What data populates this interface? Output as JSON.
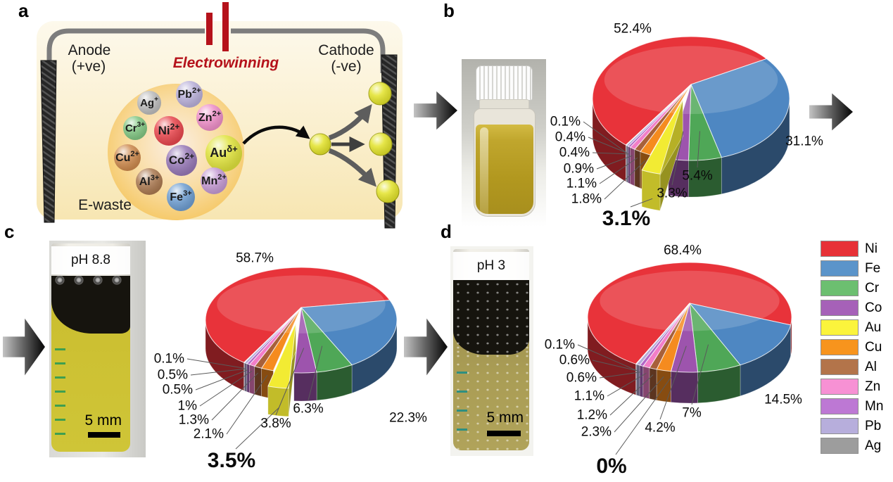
{
  "panels": {
    "a": {
      "letter": "a",
      "anode_label": "Anode",
      "anode_polarity": "(+ve)",
      "cathode_label": "Cathode",
      "cathode_polarity": "(-ve)",
      "process_title": "Electrowinning",
      "process_title_color": "#b5121b",
      "source_label": "E-waste",
      "ions": [
        {
          "symbol": "Ag",
          "charge": "+",
          "color": "#bcbcbc"
        },
        {
          "symbol": "Pb",
          "charge": "2+",
          "color": "#b9b0d9"
        },
        {
          "symbol": "Zn",
          "charge": "2+",
          "color": "#ee8fc8"
        },
        {
          "symbol": "Cr",
          "charge": "3+",
          "color": "#82c683"
        },
        {
          "symbol": "Ni",
          "charge": "2+",
          "color": "#e8474e"
        },
        {
          "symbol": "Cu",
          "charge": "2+",
          "color": "#cd8a4e"
        },
        {
          "symbol": "Co",
          "charge": "2+",
          "color": "#9779b7"
        },
        {
          "symbol": "Au",
          "charge": "δ+",
          "color": "#e0e33e"
        },
        {
          "symbol": "Al",
          "charge": "3+",
          "color": "#ab7a52"
        },
        {
          "symbol": "Mn",
          "charge": "2+",
          "color": "#c49ad3"
        },
        {
          "symbol": "Fe",
          "charge": "3+",
          "color": "#6f9ed1"
        }
      ]
    },
    "b": {
      "letter": "b"
    },
    "c": {
      "letter": "c",
      "photo_ph_label": "pH 8.8",
      "photo_scale_label": "5 mm"
    },
    "d": {
      "letter": "d",
      "photo_ph_label": "pH 3",
      "photo_scale_label": "5 mm"
    }
  },
  "legend": {
    "position": "right",
    "items": [
      {
        "label": "Ni",
        "color": "#e73137"
      },
      {
        "label": "Fe",
        "color": "#5b94ca"
      },
      {
        "label": "Cr",
        "color": "#6cbf70"
      },
      {
        "label": "Co",
        "color": "#a661b8"
      },
      {
        "label": "Au",
        "color": "#fbf43c"
      },
      {
        "label": "Cu",
        "color": "#f7941d"
      },
      {
        "label": "Al",
        "color": "#b3744a"
      },
      {
        "label": "Zn",
        "color": "#f791d4"
      },
      {
        "label": "Mn",
        "color": "#bd78d4"
      },
      {
        "label": "Pb",
        "color": "#b7aedc"
      },
      {
        "label": "Ag",
        "color": "#9d9d9d"
      }
    ]
  },
  "chart_data": [
    {
      "type": "pie",
      "panel": "b",
      "categories": [
        "Ni",
        "Fe",
        "Cr",
        "Co",
        "Au",
        "Cu",
        "Al",
        "Zn",
        "Mn",
        "Pb",
        "Ag"
      ],
      "values": [
        52.4,
        31.1,
        5.4,
        3.3,
        3.1,
        1.8,
        1.1,
        0.9,
        0.4,
        0.4,
        0.1
      ],
      "labels": [
        "52.4%",
        "31.1%",
        "5.4%",
        "3.3%",
        "3.1%",
        "1.8%",
        "1.1%",
        "0.9%",
        "0.4%",
        "0.4%",
        "0.1%"
      ],
      "colors": [
        "#e8333a",
        "#4e87c2",
        "#4fa757",
        "#9d54ad",
        "#f2eb33",
        "#f58b1f",
        "#a7603a",
        "#f27ec8",
        "#b266c6",
        "#b5abd8",
        "#dcdcdc"
      ],
      "exploded_slice": "Au",
      "emphasized_label": "3.1%",
      "style": "3d-pie"
    },
    {
      "type": "pie",
      "panel": "c",
      "categories": [
        "Ni",
        "Fe",
        "Cr",
        "Co",
        "Au",
        "Cu",
        "Al",
        "Zn",
        "Mn",
        "Pb",
        "Ag"
      ],
      "values": [
        58.7,
        22.3,
        6.3,
        3.8,
        3.5,
        2.1,
        1.3,
        1.0,
        0.5,
        0.5,
        0.1
      ],
      "labels": [
        "58.7%",
        "22.3%",
        "6.3%",
        "3.8%",
        "3.5%",
        "2.1%",
        "1.3%",
        "1%",
        "0.5%",
        "0.5%",
        "0.1%"
      ],
      "colors": [
        "#e8333a",
        "#4e87c2",
        "#4fa757",
        "#9d54ad",
        "#f2eb33",
        "#f58b1f",
        "#a7603a",
        "#f27ec8",
        "#b266c6",
        "#b5abd8",
        "#dcdcdc"
      ],
      "exploded_slice": "Au",
      "emphasized_label": "3.5%",
      "style": "3d-pie"
    },
    {
      "type": "pie",
      "panel": "d",
      "categories": [
        "Ni",
        "Fe",
        "Cr",
        "Co",
        "Au",
        "Cu",
        "Al",
        "Zn",
        "Mn",
        "Pb",
        "Ag"
      ],
      "values": [
        68.4,
        14.5,
        7.0,
        4.2,
        0.0,
        2.3,
        1.2,
        1.1,
        0.6,
        0.6,
        0.1
      ],
      "labels": [
        "68.4%",
        "14.5%",
        "7%",
        "4.2%",
        "0%",
        "2.3%",
        "1.2%",
        "1.1%",
        "0.6%",
        "0.6%",
        "0.1%"
      ],
      "colors": [
        "#e8333a",
        "#4e87c2",
        "#4fa757",
        "#9d54ad",
        "#f2eb33",
        "#f58b1f",
        "#a7603a",
        "#f27ec8",
        "#b266c6",
        "#b5abd8",
        "#dcdcdc"
      ],
      "exploded_slice": null,
      "emphasized_label": "0%",
      "style": "3d-pie"
    }
  ]
}
